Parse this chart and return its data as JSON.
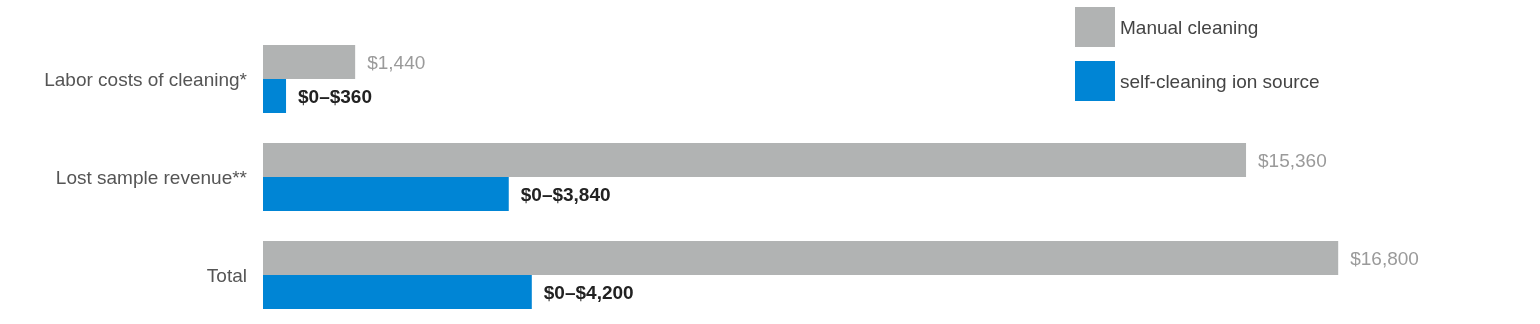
{
  "chart_data": {
    "type": "bar",
    "orientation": "horizontal",
    "categories": [
      "Labor costs of cleaning*",
      "Lost sample revenue**",
      "Total"
    ],
    "series": [
      {
        "name": "Manual cleaning",
        "color": "#b1b3b3",
        "values": [
          1440,
          15360,
          16800
        ],
        "value_labels": [
          "$1,440",
          "$15,360",
          "$16,800"
        ]
      },
      {
        "name": "self-cleaning ion source",
        "color": "#0085d5",
        "values": [
          360,
          3840,
          4200
        ],
        "value_labels": [
          "$0–$360",
          "$0–$3,840",
          "$0–$4,200"
        ]
      }
    ],
    "legend": "top right"
  }
}
